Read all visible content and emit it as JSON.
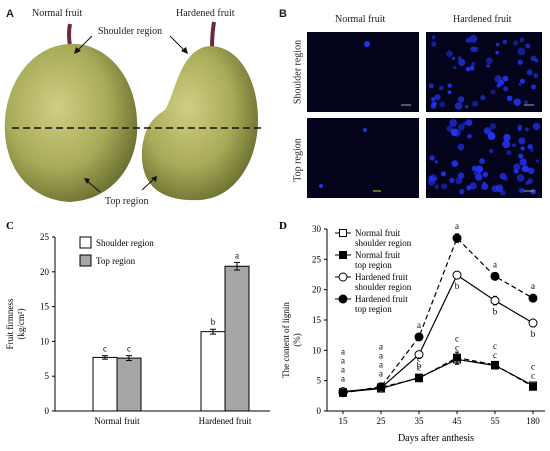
{
  "panelA": {
    "label": "A",
    "normal_fruit": "Normal fruit",
    "hardened_fruit": "Hardened fruit",
    "shoulder_region": "Shoulder region",
    "top_region": "Top region"
  },
  "panelB": {
    "label": "B",
    "normal_fruit": "Normal fruit",
    "hardened_fruit": "Hardened fruit",
    "shoulder_region": "Shoulder region",
    "top_region": "Top region",
    "stain_color": "#2233ee",
    "background_color": "#03041c"
  },
  "chart_data": [
    {
      "panel": "C",
      "type": "bar",
      "categories": [
        "Normal fruit",
        "Hardened fruit"
      ],
      "series": [
        {
          "name": "Shoulder region",
          "values": [
            7.7,
            11.4
          ],
          "errors": [
            0.25,
            0.35
          ],
          "letters": [
            "c",
            "b"
          ],
          "color": "#ffffff"
        },
        {
          "name": "Top region",
          "values": [
            7.6,
            20.8
          ],
          "errors": [
            0.35,
            0.55
          ],
          "letters": [
            "c",
            "a"
          ],
          "color": "#a6a6a6"
        }
      ],
      "ylabel_line1": "Fruit firmness",
      "ylabel_line2": "(kg/cm²)",
      "ylim": [
        0,
        25
      ],
      "yticks": [
        "0",
        "5",
        "10",
        "15",
        "20",
        "25"
      ],
      "legend": "top-left"
    },
    {
      "panel": "D",
      "type": "line",
      "x": [
        "15",
        "25",
        "35",
        "45",
        "55",
        "180"
      ],
      "series": [
        {
          "name_line1": "Normal fruit",
          "name_line2": "shoulder region",
          "values": [
            3.1,
            3.7,
            5.5,
            8.5,
            7.5,
            4.2
          ],
          "errors": [
            0.4,
            0.3,
            0.5,
            0.8,
            0.5,
            0.5
          ],
          "marker": "open-square",
          "dash": "solid"
        },
        {
          "name_line1": "Normal fruit",
          "name_line2": "top region",
          "values": [
            3.0,
            3.9,
            5.4,
            8.8,
            7.6,
            4.0
          ],
          "errors": [
            0.4,
            0.3,
            0.5,
            0.9,
            0.5,
            0.5
          ],
          "marker": "filled-square",
          "dash": "dashed"
        },
        {
          "name_line1": "Hardened fruit",
          "name_line2": "shoulder region",
          "values": [
            3.2,
            3.8,
            9.3,
            22.4,
            18.2,
            14.5
          ],
          "errors": [
            0.4,
            0.3,
            0.5,
            0.6,
            0.7,
            0.6
          ],
          "marker": "open-circle",
          "dash": "solid"
        },
        {
          "name_line1": "Hardened fruit",
          "name_line2": "top region",
          "values": [
            3.0,
            4.0,
            12.2,
            28.5,
            22.2,
            18.6
          ],
          "errors": [
            0.4,
            0.3,
            0.5,
            0.7,
            0.6,
            0.6
          ],
          "marker": "filled-circle",
          "dash": "dashed"
        }
      ],
      "annotations": [
        {
          "x": "15",
          "letters": [
            "a",
            "a",
            "a",
            "a"
          ]
        },
        {
          "x": "25",
          "letters": [
            "a",
            "a",
            "a",
            "a"
          ]
        },
        {
          "x": "35",
          "letters": [
            "a",
            "b",
            "c",
            "c"
          ]
        },
        {
          "x": "45",
          "letters": [
            "a",
            "b",
            "c",
            "c"
          ]
        },
        {
          "x": "55",
          "letters": [
            "a",
            "b",
            "c",
            "c"
          ]
        },
        {
          "x": "180",
          "letters": [
            "a",
            "b",
            "c",
            "c"
          ]
        }
      ],
      "xlabel": "Days after anthesis",
      "ylabel_line1": "The content of lignin",
      "ylabel_line2": "(%)",
      "ylim": [
        0,
        30
      ],
      "yticks": [
        "0",
        "5",
        "10",
        "15",
        "20",
        "25",
        "30"
      ],
      "legend": "top-left"
    }
  ]
}
